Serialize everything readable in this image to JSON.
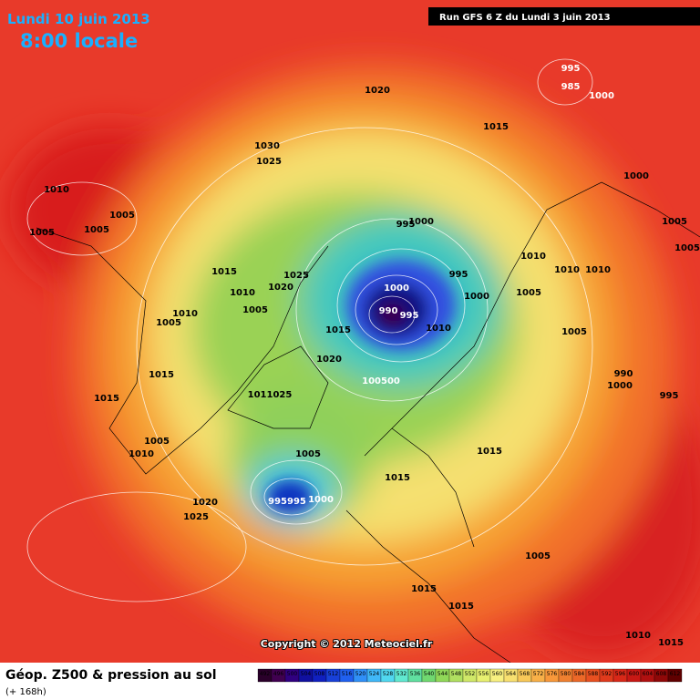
{
  "header": {
    "date": "Lundi 10 juin 2013",
    "time": "8:00 locale",
    "run": "Run GFS 6 Z du Lundi 3 juin 2013"
  },
  "map": {
    "copyright": "Copyright © 2012 Meteociel.fr",
    "pressure_labels": [
      "995",
      "985",
      "1000",
      "1020",
      "1015",
      "1030",
      "1025",
      "1010",
      "1005",
      "1005",
      "1005",
      "1000",
      "1005",
      "1005",
      "995",
      "1000",
      "1010",
      "1010",
      "1010",
      "1015",
      "1025",
      "995",
      "1000",
      "1005",
      "1010",
      "1020",
      "1000",
      "990",
      "995",
      "1010",
      "1005",
      "1005",
      "1015",
      "1010",
      "1005",
      "1020",
      "100500",
      "1015",
      "990",
      "1000",
      "995",
      "1015",
      "1011025",
      "1005",
      "1010",
      "1015",
      "1005",
      "1015",
      "995995",
      "1000",
      "1020",
      "1025",
      "1005",
      "1015",
      "1015",
      "1010",
      "1015"
    ]
  },
  "footer": {
    "title": "Géop. Z500 & pression au sol",
    "lead": "(+ 168h)"
  },
  "legend": {
    "levels": [
      492,
      496,
      500,
      504,
      508,
      512,
      516,
      520,
      524,
      528,
      532,
      536,
      540,
      544,
      548,
      552,
      556,
      560,
      564,
      568,
      572,
      576,
      580,
      584,
      588,
      592,
      596,
      600,
      604,
      608,
      612
    ]
  }
}
